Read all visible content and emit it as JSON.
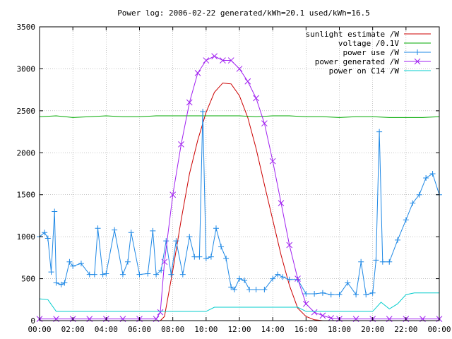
{
  "chart_data": {
    "type": "line",
    "title": "Power log: 2006-02-22 generated/kWh=20.1 used/kWh=16.5",
    "xlabel": "",
    "ylabel": "",
    "xlim": [
      0,
      24
    ],
    "ylim": [
      0,
      3500
    ],
    "x_ticks": [
      "00:00",
      "02:00",
      "04:00",
      "06:00",
      "08:00",
      "10:00",
      "12:00",
      "14:00",
      "16:00",
      "18:00",
      "20:00",
      "22:00",
      "00:00"
    ],
    "y_ticks": [
      "0",
      "500",
      "1000",
      "1500",
      "2000",
      "2500",
      "3000",
      "3500"
    ],
    "grid": true,
    "legend_position": "top-right",
    "series": [
      {
        "name": "sunlight estimate /W",
        "color": "#cc0000",
        "marker": "none",
        "x": [
          7.25,
          7.5,
          8,
          8.5,
          9,
          9.5,
          10,
          10.5,
          11,
          11.5,
          12,
          12.5,
          13,
          13.5,
          14,
          14.5,
          15,
          15.5,
          16,
          16.5,
          17
        ],
        "y": [
          0,
          50,
          600,
          1200,
          1750,
          2150,
          2480,
          2720,
          2830,
          2820,
          2680,
          2420,
          2050,
          1620,
          1200,
          780,
          420,
          150,
          50,
          10,
          0
        ]
      },
      {
        "name": "voltage /0.1V",
        "color": "#00aa00",
        "marker": "none",
        "x": [
          0,
          1,
          2,
          3,
          4,
          5,
          6,
          7,
          8,
          9,
          10,
          11,
          12,
          13,
          14,
          15,
          16,
          17,
          18,
          19,
          20,
          21,
          22,
          23,
          24
        ],
        "y": [
          2430,
          2440,
          2420,
          2430,
          2440,
          2430,
          2430,
          2440,
          2440,
          2440,
          2440,
          2440,
          2440,
          2430,
          2440,
          2440,
          2430,
          2430,
          2420,
          2430,
          2430,
          2420,
          2420,
          2420,
          2430
        ]
      },
      {
        "name": "power use /W",
        "color": "#1e88e5",
        "marker": "plus",
        "x": [
          0,
          0.3,
          0.5,
          0.7,
          0.9,
          1.0,
          1.3,
          1.5,
          1.8,
          2.0,
          2.5,
          3.0,
          3.3,
          3.5,
          3.8,
          4.0,
          4.5,
          5.0,
          5.3,
          5.5,
          6.0,
          6.5,
          6.8,
          7.0,
          7.3,
          7.6,
          7.9,
          8.2,
          8.6,
          9.0,
          9.3,
          9.6,
          9.8,
          10.0,
          10.3,
          10.6,
          10.9,
          11.2,
          11.5,
          11.7,
          12.0,
          12.3,
          12.6,
          13.0,
          13.5,
          14.0,
          14.3,
          14.6,
          15.0,
          15.5,
          16.0,
          16.5,
          17.0,
          17.5,
          18.0,
          18.5,
          19.0,
          19.3,
          19.6,
          20.0,
          20.2,
          20.4,
          20.6,
          21.0,
          21.5,
          22.0,
          22.4,
          22.8,
          23.2,
          23.6,
          24.0
        ],
        "y": [
          1000,
          1050,
          980,
          580,
          1300,
          450,
          430,
          450,
          700,
          650,
          680,
          550,
          550,
          1100,
          550,
          560,
          1080,
          550,
          700,
          1050,
          550,
          560,
          1070,
          550,
          600,
          950,
          550,
          950,
          550,
          1000,
          760,
          760,
          2490,
          740,
          760,
          1100,
          880,
          740,
          400,
          370,
          500,
          480,
          370,
          370,
          370,
          500,
          550,
          520,
          490,
          490,
          320,
          320,
          330,
          310,
          310,
          450,
          310,
          700,
          310,
          330,
          720,
          2250,
          700,
          700,
          960,
          1200,
          1400,
          1500,
          1700,
          1750,
          1500
        ]
      },
      {
        "name": "power generated /W",
        "color": "#a020f0",
        "marker": "cross",
        "x": [
          0,
          1,
          2,
          3,
          4,
          5,
          6,
          7,
          7.25,
          7.5,
          8,
          8.5,
          9,
          9.5,
          10,
          10.5,
          11,
          11.5,
          12,
          12.5,
          13,
          13.5,
          14,
          14.5,
          15,
          15.5,
          16,
          16.5,
          17,
          17.5,
          18,
          19,
          20,
          21,
          22,
          23,
          24
        ],
        "y": [
          20,
          20,
          20,
          20,
          20,
          20,
          20,
          20,
          100,
          700,
          1500,
          2100,
          2600,
          2950,
          3100,
          3150,
          3100,
          3100,
          3000,
          2850,
          2650,
          2350,
          1900,
          1400,
          900,
          500,
          200,
          100,
          60,
          30,
          20,
          20,
          20,
          20,
          20,
          20,
          20
        ]
      },
      {
        "name": "power on C14 /W",
        "color": "#00cccc",
        "marker": "none",
        "x": [
          0,
          0.5,
          1.0,
          1.5,
          2,
          4,
          6,
          7.2,
          7.6,
          8,
          10,
          10.5,
          12,
          14,
          15.5,
          16,
          18,
          20,
          20.5,
          21,
          21.5,
          22,
          22.5,
          23,
          24
        ],
        "y": [
          260,
          250,
          110,
          110,
          110,
          110,
          110,
          110,
          110,
          110,
          110,
          160,
          160,
          160,
          160,
          110,
          110,
          110,
          220,
          140,
          200,
          310,
          330,
          330,
          330
        ]
      }
    ]
  }
}
